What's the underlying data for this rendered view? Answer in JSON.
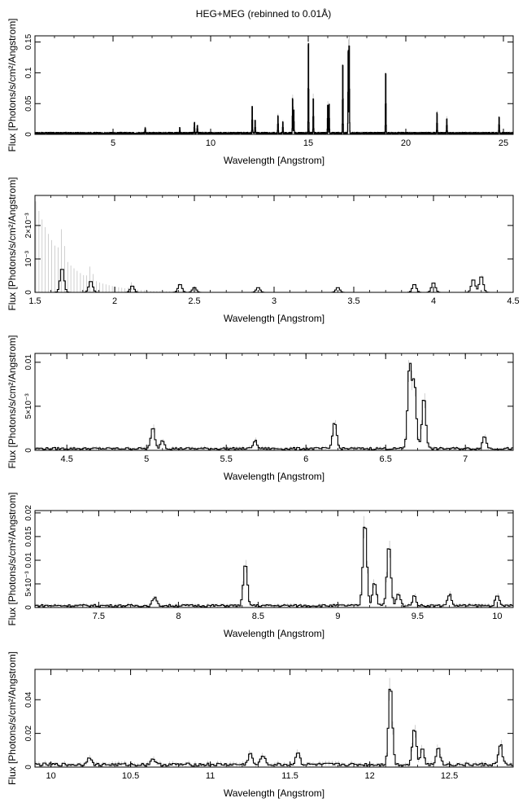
{
  "title": "HEG+MEG (rebinned to 0.01Å)",
  "colors": {
    "data": "#000000",
    "errorbar": "#b0b0b0",
    "axes": "#000000"
  },
  "chart_data": [
    {
      "type": "line",
      "step": true,
      "xlabel": "Wavelength [Angstrom]",
      "ylabel": "Flux [Photons/s/cm²/Angstrom]",
      "xlim": [
        1.0,
        25.5
      ],
      "ylim": [
        0,
        0.16
      ],
      "xticks": [
        5,
        10,
        15,
        20,
        25
      ],
      "xtick_labels": [
        "5",
        "10",
        "15",
        "20",
        "25"
      ],
      "yticks": [
        0,
        0.05,
        0.1,
        0.15
      ],
      "ytick_labels": [
        "0",
        "0.05",
        "0.1",
        "0.15"
      ],
      "baseline": 0.002,
      "lines": [
        [
          6.65,
          0.01
        ],
        [
          8.42,
          0.009
        ],
        [
          9.17,
          0.018
        ],
        [
          9.32,
          0.013
        ],
        [
          12.13,
          0.048
        ],
        [
          12.28,
          0.022
        ],
        [
          13.45,
          0.03
        ],
        [
          13.7,
          0.02
        ],
        [
          14.2,
          0.06
        ],
        [
          14.26,
          0.04
        ],
        [
          15.01,
          0.157
        ],
        [
          15.26,
          0.06
        ],
        [
          16.0,
          0.05
        ],
        [
          16.07,
          0.05
        ],
        [
          16.77,
          0.12
        ],
        [
          17.05,
          0.145
        ],
        [
          17.1,
          0.155
        ],
        [
          18.97,
          0.105
        ],
        [
          21.6,
          0.035
        ],
        [
          22.1,
          0.025
        ],
        [
          24.78,
          0.028
        ]
      ]
    },
    {
      "type": "line",
      "step": true,
      "xlabel": "Wavelength [Angstrom]",
      "ylabel": "Flux [Photons/s/cm²/Angstrom]",
      "xlim": [
        1.5,
        4.5
      ],
      "ylim": [
        0,
        0.0029
      ],
      "xticks": [
        1.5,
        2,
        2.5,
        3,
        3.5,
        4,
        4.5
      ],
      "xtick_labels": [
        "1.5",
        "2",
        "2.5",
        "3",
        "3.5",
        "4",
        "4.5"
      ],
      "yticks": [
        0,
        0.001,
        0.002
      ],
      "ytick_labels": [
        "0",
        "10⁻³",
        "2×10⁻³"
      ],
      "baseline": 0.0,
      "lines": [
        [
          1.67,
          0.00075
        ],
        [
          1.85,
          0.00035
        ],
        [
          2.11,
          0.0002
        ],
        [
          2.41,
          0.00025
        ],
        [
          2.5,
          0.00015
        ],
        [
          2.9,
          0.00015
        ],
        [
          3.4,
          0.00015
        ],
        [
          3.88,
          0.00025
        ],
        [
          4.0,
          0.0003
        ],
        [
          4.25,
          0.0004
        ],
        [
          4.3,
          0.0005
        ]
      ]
    },
    {
      "type": "line",
      "step": true,
      "xlabel": "Wavelength [Angstrom]",
      "ylabel": "Flux [Photons/s/cm²/Angstrom]",
      "xlim": [
        4.3,
        7.3
      ],
      "ylim": [
        0,
        0.011
      ],
      "xticks": [
        4.5,
        5,
        5.5,
        6,
        6.5,
        7
      ],
      "xtick_labels": [
        "4.5",
        "5",
        "5.5",
        "6",
        "6.5",
        "7"
      ],
      "yticks": [
        0,
        0.005,
        0.01
      ],
      "ytick_labels": [
        "0",
        "5×10⁻³",
        "0.01"
      ],
      "baseline": 0.0002,
      "lines": [
        [
          5.04,
          0.0024
        ],
        [
          5.1,
          0.001
        ],
        [
          5.68,
          0.0009
        ],
        [
          6.18,
          0.0031
        ],
        [
          6.65,
          0.0095
        ],
        [
          6.68,
          0.0075
        ],
        [
          6.74,
          0.006
        ],
        [
          7.12,
          0.0014
        ]
      ]
    },
    {
      "type": "line",
      "step": true,
      "xlabel": "Wavelength [Angstrom]",
      "ylabel": "Flux [Photons/s/cm²/Angstrom]",
      "xlim": [
        7.1,
        10.1
      ],
      "ylim": [
        0,
        0.0205
      ],
      "xticks": [
        7.5,
        8,
        8.5,
        9,
        9.5,
        10
      ],
      "xtick_labels": [
        "7.5",
        "8",
        "8.5",
        "9",
        "9.5",
        "10"
      ],
      "yticks": [
        0,
        0.005,
        0.01,
        0.015,
        0.02
      ],
      "ytick_labels": [
        "0",
        "5×10⁻³",
        "0.01",
        "0.015",
        "0.02"
      ],
      "baseline": 0.0004,
      "lines": [
        [
          7.85,
          0.0018
        ],
        [
          8.42,
          0.009
        ],
        [
          9.17,
          0.018
        ],
        [
          9.23,
          0.005
        ],
        [
          9.32,
          0.013
        ],
        [
          9.38,
          0.0025
        ],
        [
          9.48,
          0.002
        ],
        [
          9.7,
          0.0024
        ],
        [
          10.0,
          0.002
        ]
      ]
    },
    {
      "type": "line",
      "step": true,
      "xlabel": "Wavelength [Angstrom]",
      "ylabel": "Flux [Photons/s/cm²/Angstrom]",
      "xlim": [
        9.9,
        12.9
      ],
      "ylim": [
        0,
        0.058
      ],
      "xticks": [
        10,
        10.5,
        11,
        11.5,
        12,
        12.5
      ],
      "xtick_labels": [
        "10",
        "10.5",
        "11",
        "11.5",
        "12",
        "12.5"
      ],
      "yticks": [
        0,
        0.02,
        0.04
      ],
      "ytick_labels": [
        "0",
        "0.02",
        "0.04"
      ],
      "baseline": 0.0015,
      "lines": [
        [
          10.24,
          0.005
        ],
        [
          10.64,
          0.004
        ],
        [
          11.25,
          0.007
        ],
        [
          11.33,
          0.006
        ],
        [
          11.55,
          0.008
        ],
        [
          12.13,
          0.048
        ],
        [
          12.28,
          0.022
        ],
        [
          12.33,
          0.01
        ],
        [
          12.43,
          0.011
        ],
        [
          12.82,
          0.012
        ]
      ]
    }
  ]
}
